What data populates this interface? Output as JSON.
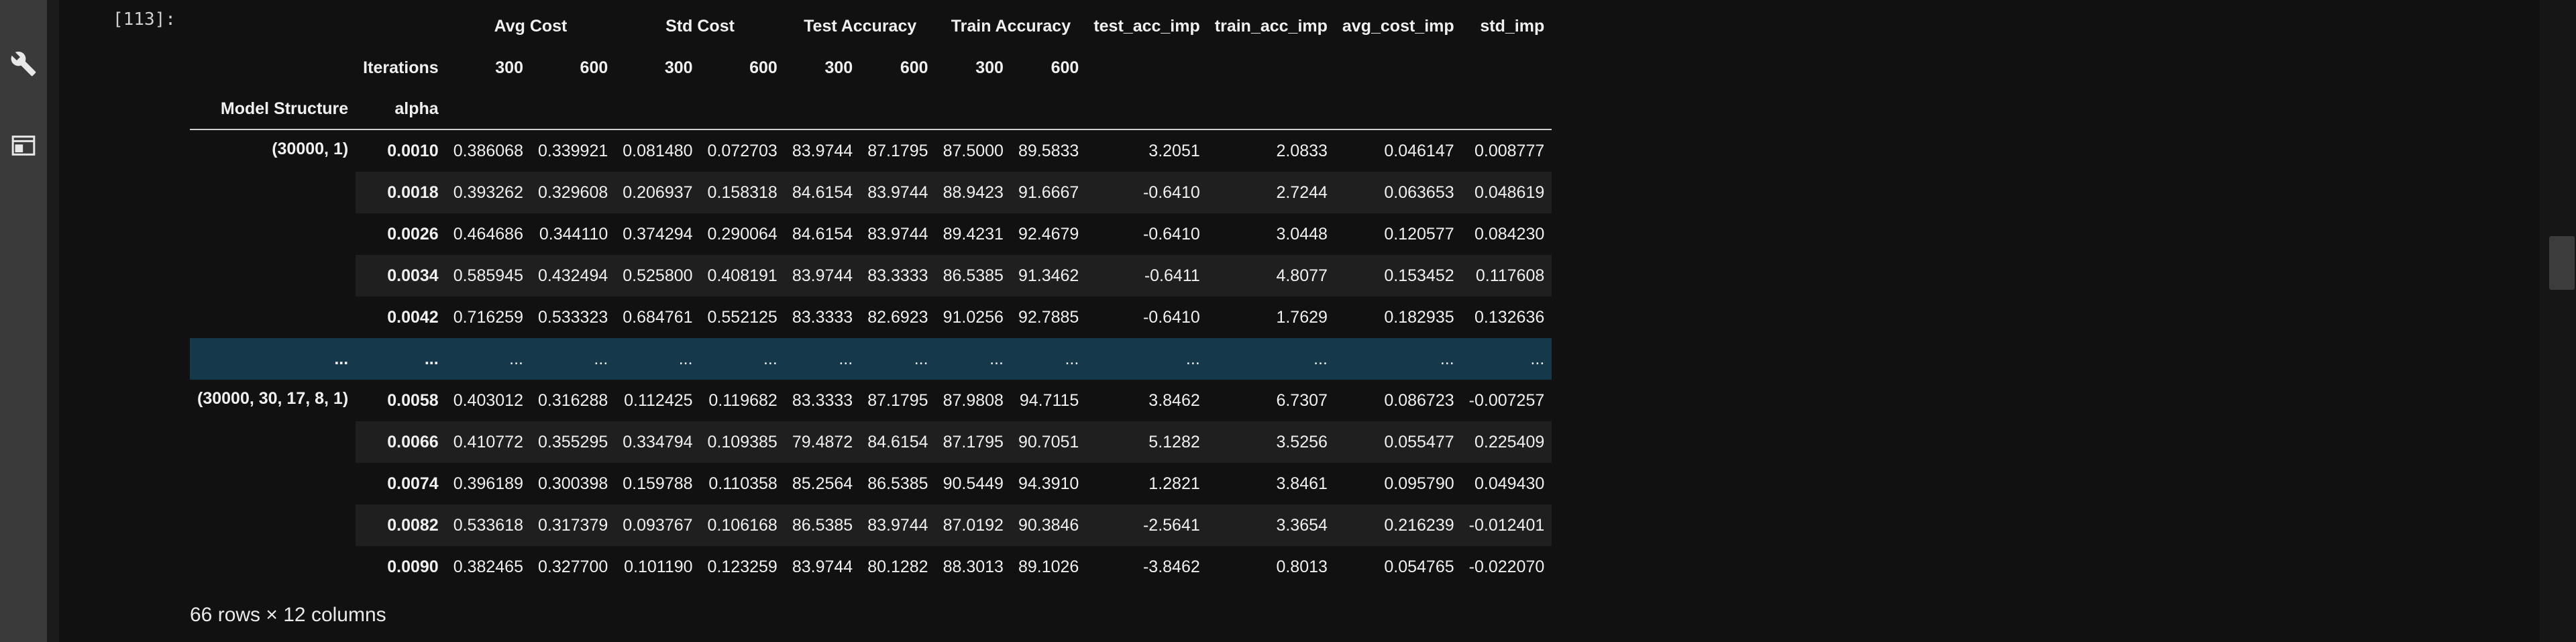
{
  "cell": {
    "prompt": "[113]:"
  },
  "table": {
    "group_headers": [
      "Avg Cost",
      "Std Cost",
      "Test Accuracy",
      "Train Accuracy",
      "test_acc_imp",
      "train_acc_imp",
      "avg_cost_imp",
      "std_imp"
    ],
    "iterations_label": "Iterations",
    "iterations": [
      "300",
      "600",
      "300",
      "600",
      "300",
      "600",
      "300",
      "600"
    ],
    "index_names": [
      "Model Structure",
      "alpha"
    ],
    "rows": [
      {
        "structure": "(30000, 1)",
        "alpha": "0.0010",
        "values": [
          "0.386068",
          "0.339921",
          "0.081480",
          "0.072703",
          "83.9744",
          "87.1795",
          "87.5000",
          "89.5833",
          "3.2051",
          "2.0833",
          "0.046147",
          "0.008777"
        ]
      },
      {
        "structure": "",
        "alpha": "0.0018",
        "values": [
          "0.393262",
          "0.329608",
          "0.206937",
          "0.158318",
          "84.6154",
          "83.9744",
          "88.9423",
          "91.6667",
          "-0.6410",
          "2.7244",
          "0.063653",
          "0.048619"
        ]
      },
      {
        "structure": "",
        "alpha": "0.0026",
        "values": [
          "0.464686",
          "0.344110",
          "0.374294",
          "0.290064",
          "84.6154",
          "83.9744",
          "89.4231",
          "92.4679",
          "-0.6410",
          "3.0448",
          "0.120577",
          "0.084230"
        ]
      },
      {
        "structure": "",
        "alpha": "0.0034",
        "values": [
          "0.585945",
          "0.432494",
          "0.525800",
          "0.408191",
          "83.9744",
          "83.3333",
          "86.5385",
          "91.3462",
          "-0.6411",
          "4.8077",
          "0.153452",
          "0.117608"
        ]
      },
      {
        "structure": "",
        "alpha": "0.0042",
        "values": [
          "0.716259",
          "0.533323",
          "0.684761",
          "0.552125",
          "83.3333",
          "82.6923",
          "91.0256",
          "92.7885",
          "-0.6410",
          "1.7629",
          "0.182935",
          "0.132636"
        ]
      }
    ],
    "ellipsis": "...",
    "rows2": [
      {
        "structure": "(30000, 30, 17, 8, 1)",
        "alpha": "0.0058",
        "values": [
          "0.403012",
          "0.316288",
          "0.112425",
          "0.119682",
          "83.3333",
          "87.1795",
          "87.9808",
          "94.7115",
          "3.8462",
          "6.7307",
          "0.086723",
          "-0.007257"
        ]
      },
      {
        "structure": "",
        "alpha": "0.0066",
        "values": [
          "0.410772",
          "0.355295",
          "0.334794",
          "0.109385",
          "79.4872",
          "84.6154",
          "87.1795",
          "90.7051",
          "5.1282",
          "3.5256",
          "0.055477",
          "0.225409"
        ]
      },
      {
        "structure": "",
        "alpha": "0.0074",
        "values": [
          "0.396189",
          "0.300398",
          "0.159788",
          "0.110358",
          "85.2564",
          "86.5385",
          "90.5449",
          "94.3910",
          "1.2821",
          "3.8461",
          "0.095790",
          "0.049430"
        ]
      },
      {
        "structure": "",
        "alpha": "0.0082",
        "values": [
          "0.533618",
          "0.317379",
          "0.093767",
          "0.106168",
          "86.5385",
          "83.9744",
          "87.0192",
          "90.3846",
          "-2.5641",
          "3.3654",
          "0.216239",
          "-0.012401"
        ]
      },
      {
        "structure": "",
        "alpha": "0.0090",
        "values": [
          "0.382465",
          "0.327700",
          "0.101190",
          "0.123259",
          "83.9744",
          "80.1282",
          "88.3013",
          "89.1026",
          "-3.8462",
          "0.8013",
          "0.054765",
          "-0.022070"
        ]
      }
    ]
  },
  "footer": {
    "shape": "66 rows × 12 columns"
  },
  "toolbar": {
    "icons": [
      "wrench-icon",
      "window-icon"
    ]
  }
}
